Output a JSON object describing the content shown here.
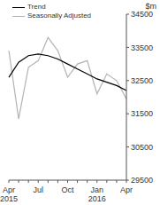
{
  "chart_data": {
    "type": "line",
    "y_label": "$m",
    "legend": "top-left",
    "categories": [
      "Apr 2015",
      null,
      null,
      "Jul",
      null,
      null,
      "Oct",
      null,
      null,
      "Jan 2016",
      null,
      null,
      "Apr"
    ],
    "series": [
      {
        "name": "Trend",
        "color": "#000000",
        "values": [
          32600,
          33050,
          33250,
          33300,
          33250,
          33150,
          33000,
          32850,
          32700,
          32550,
          32450,
          32350,
          32200
        ]
      },
      {
        "name": "Seasonally Adjusted",
        "color": "#b3b3b3",
        "values": [
          33400,
          31350,
          32900,
          33100,
          33800,
          33400,
          32600,
          33000,
          33100,
          32100,
          32700,
          32500,
          31950
        ]
      }
    ],
    "ylim": [
      29500,
      34500
    ],
    "yticks": [
      29500,
      30500,
      31500,
      32500,
      33500,
      34500
    ]
  }
}
